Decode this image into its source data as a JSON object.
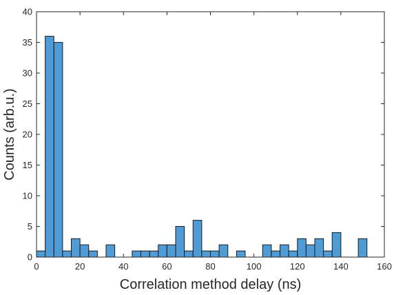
{
  "chart_data": {
    "type": "bar",
    "title": "",
    "xlabel": "Correlation method delay (ns)",
    "ylabel": "Counts (arb.u.)",
    "xlim": [
      0,
      160
    ],
    "ylim": [
      0,
      40
    ],
    "xticks": [
      0,
      20,
      40,
      60,
      80,
      100,
      120,
      140,
      160
    ],
    "yticks": [
      0,
      5,
      10,
      15,
      20,
      25,
      30,
      35,
      40
    ],
    "bin_width": 4,
    "bin_start": 0,
    "values": [
      1,
      36,
      35,
      1,
      3,
      2,
      1,
      0,
      2,
      0,
      0,
      1,
      1,
      1,
      2,
      2,
      5,
      1,
      6,
      1,
      1,
      2,
      0,
      1,
      0,
      0,
      2,
      1,
      2,
      1,
      3,
      2,
      3,
      1,
      4,
      0,
      0,
      3,
      0,
      0
    ],
    "grid": false,
    "legend": "none",
    "bar_color": "#4f9bd6",
    "edge_color": "#1a1a1a"
  }
}
